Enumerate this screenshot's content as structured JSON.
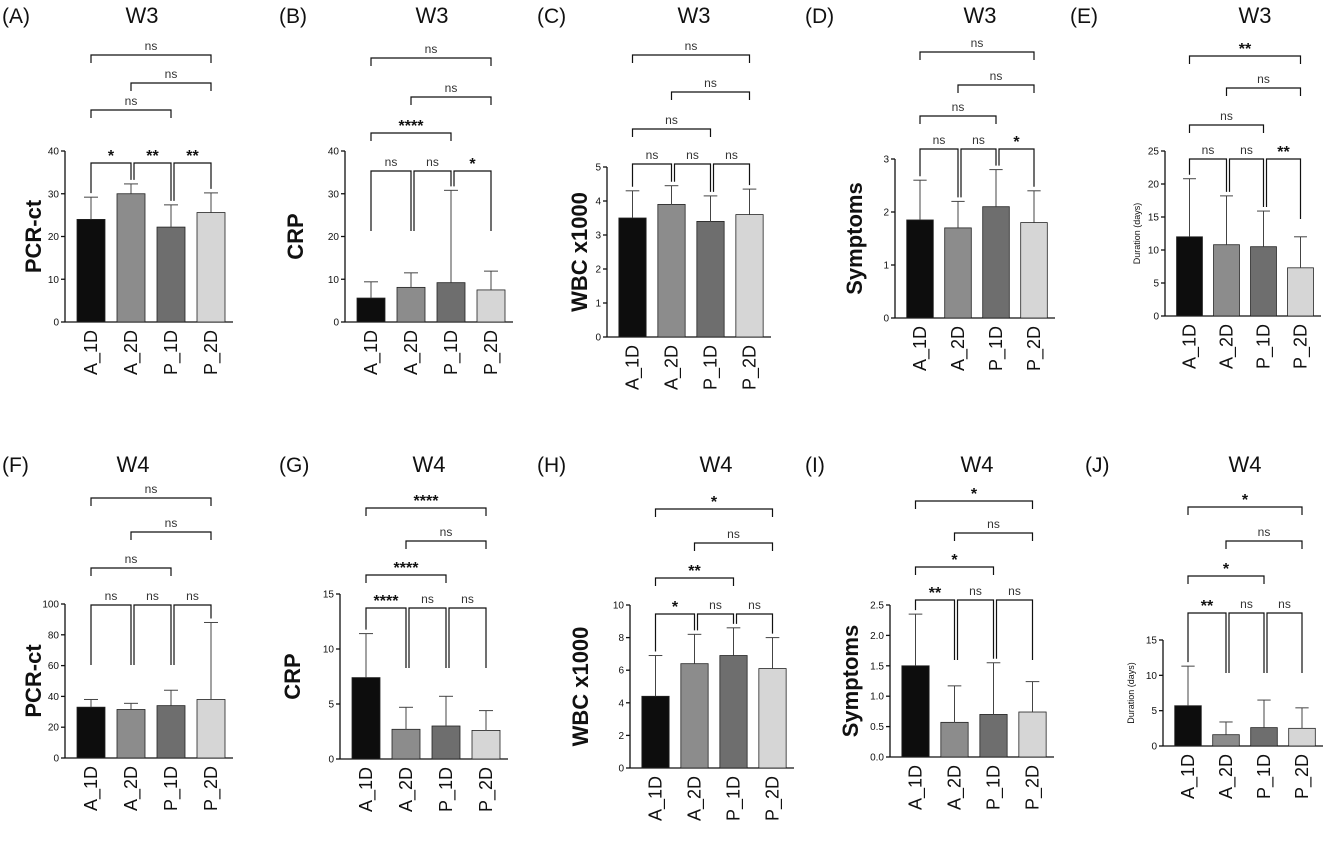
{
  "chart_data": [
    {
      "letter": "(A)",
      "title": "W3",
      "type": "bar",
      "ylabel": "PCR-ct",
      "categories": [
        "A_1D",
        "A_2D",
        "P_1D",
        "P_2D"
      ],
      "values": [
        24,
        30,
        22.2,
        25.6
      ],
      "errors": [
        5.2,
        2.3,
        5.2,
        4.6
      ],
      "ylim": [
        0,
        40
      ],
      "yticks": [
        "0",
        "10",
        "20",
        "30",
        "40"
      ],
      "comparisons": [
        {
          "from": "A_1D",
          "to": "A_2D",
          "label": "*"
        },
        {
          "from": "A_2D",
          "to": "P_1D",
          "label": "**"
        },
        {
          "from": "P_1D",
          "to": "P_2D",
          "label": "**"
        },
        {
          "from": "A_1D",
          "to": "P_1D",
          "label": "ns"
        },
        {
          "from": "A_2D",
          "to": "P_2D",
          "label": "ns"
        },
        {
          "from": "A_1D",
          "to": "P_2D",
          "label": "ns"
        }
      ]
    },
    {
      "letter": "(B)",
      "title": "W3",
      "type": "bar",
      "ylabel": "CRP",
      "categories": [
        "A_1D",
        "A_2D",
        "P_1D",
        "P_2D"
      ],
      "values": [
        5.6,
        8.1,
        9.2,
        7.5
      ],
      "errors": [
        3.8,
        3.4,
        21.6,
        4.4
      ],
      "ylim": [
        0,
        40
      ],
      "yticks": [
        "0",
        "10",
        "20",
        "30",
        "40"
      ],
      "comparisons": [
        {
          "from": "A_1D",
          "to": "A_2D",
          "label": "ns"
        },
        {
          "from": "A_2D",
          "to": "P_1D",
          "label": "ns"
        },
        {
          "from": "P_1D",
          "to": "P_2D",
          "label": "*"
        },
        {
          "from": "A_1D",
          "to": "P_1D",
          "label": "****"
        },
        {
          "from": "A_2D",
          "to": "P_2D",
          "label": "ns"
        },
        {
          "from": "A_1D",
          "to": "P_2D",
          "label": "ns"
        }
      ]
    },
    {
      "letter": "(C)",
      "title": "W3",
      "type": "bar",
      "ylabel": "WBC x1000",
      "categories": [
        "A_1D",
        "A_2D",
        "P_1D",
        "P_2D"
      ],
      "values": [
        3.5,
        3.9,
        3.4,
        3.6
      ],
      "errors": [
        0.8,
        0.55,
        0.75,
        0.75
      ],
      "ylim": [
        0,
        5
      ],
      "yticks": [
        "0",
        "1",
        "2",
        "3",
        "4",
        "5"
      ],
      "comparisons": [
        {
          "from": "A_1D",
          "to": "A_2D",
          "label": "ns"
        },
        {
          "from": "A_2D",
          "to": "P_1D",
          "label": "ns"
        },
        {
          "from": "P_1D",
          "to": "P_2D",
          "label": "ns"
        },
        {
          "from": "A_1D",
          "to": "P_1D",
          "label": "ns"
        },
        {
          "from": "A_2D",
          "to": "P_2D",
          "label": "ns"
        },
        {
          "from": "A_1D",
          "to": "P_2D",
          "label": "ns"
        }
      ]
    },
    {
      "letter": "(D)",
      "title": "W3",
      "type": "bar",
      "ylabel": "Symptoms",
      "categories": [
        "A_1D",
        "A_2D",
        "P_1D",
        "P_2D"
      ],
      "values": [
        1.85,
        1.7,
        2.1,
        1.8
      ],
      "errors": [
        0.75,
        0.5,
        0.7,
        0.6
      ],
      "ylim": [
        0,
        3
      ],
      "yticks": [
        "0",
        "1",
        "2",
        "3"
      ],
      "comparisons": [
        {
          "from": "A_1D",
          "to": "A_2D",
          "label": "ns"
        },
        {
          "from": "A_2D",
          "to": "P_1D",
          "label": "ns"
        },
        {
          "from": "P_1D",
          "to": "P_2D",
          "label": "*"
        },
        {
          "from": "A_1D",
          "to": "P_1D",
          "label": "ns"
        },
        {
          "from": "A_2D",
          "to": "P_2D",
          "label": "ns"
        },
        {
          "from": "A_1D",
          "to": "P_2D",
          "label": "ns"
        }
      ]
    },
    {
      "letter": "(E)",
      "title": "W3",
      "type": "bar",
      "ylabel": "Duration (days)",
      "categories": [
        "A_1D",
        "A_2D",
        "P_1D",
        "P_2D"
      ],
      "values": [
        12,
        10.8,
        10.5,
        7.3
      ],
      "errors": [
        8.8,
        7.4,
        5.4,
        4.7
      ],
      "ylim": [
        0,
        25
      ],
      "yticks": [
        "0",
        "5",
        "10",
        "15",
        "20",
        "25"
      ],
      "comparisons": [
        {
          "from": "A_1D",
          "to": "A_2D",
          "label": "ns"
        },
        {
          "from": "A_2D",
          "to": "P_1D",
          "label": "ns"
        },
        {
          "from": "P_1D",
          "to": "P_2D",
          "label": "**"
        },
        {
          "from": "A_1D",
          "to": "P_1D",
          "label": "ns"
        },
        {
          "from": "A_2D",
          "to": "P_2D",
          "label": "ns"
        },
        {
          "from": "A_1D",
          "to": "P_2D",
          "label": "**"
        }
      ]
    },
    {
      "letter": "(F)",
      "title": "W4",
      "type": "bar",
      "ylabel": "PCR-ct",
      "categories": [
        "A_1D",
        "A_2D",
        "P_1D",
        "P_2D"
      ],
      "values": [
        33,
        31.5,
        34,
        38
      ],
      "errors": [
        5,
        4,
        10,
        50
      ],
      "ylim": [
        0,
        100
      ],
      "yticks": [
        "0",
        "20",
        "40",
        "60",
        "80",
        "100"
      ],
      "comparisons": [
        {
          "from": "A_1D",
          "to": "A_2D",
          "label": "ns"
        },
        {
          "from": "A_2D",
          "to": "P_1D",
          "label": "ns"
        },
        {
          "from": "P_1D",
          "to": "P_2D",
          "label": "ns"
        },
        {
          "from": "A_1D",
          "to": "P_1D",
          "label": "ns"
        },
        {
          "from": "A_2D",
          "to": "P_2D",
          "label": "ns"
        },
        {
          "from": "A_1D",
          "to": "P_2D",
          "label": "ns"
        }
      ]
    },
    {
      "letter": "(G)",
      "title": "W4",
      "type": "bar",
      "ylabel": "CRP",
      "categories": [
        "A_1D",
        "A_2D",
        "P_1D",
        "P_2D"
      ],
      "values": [
        7.4,
        2.7,
        3,
        2.6
      ],
      "errors": [
        4,
        2,
        2.7,
        1.8
      ],
      "ylim": [
        0,
        15
      ],
      "yticks": [
        "0",
        "5",
        "10",
        "15"
      ],
      "comparisons": [
        {
          "from": "A_1D",
          "to": "A_2D",
          "label": "****"
        },
        {
          "from": "A_2D",
          "to": "P_1D",
          "label": "ns"
        },
        {
          "from": "P_1D",
          "to": "P_2D",
          "label": "ns"
        },
        {
          "from": "A_1D",
          "to": "P_1D",
          "label": "****"
        },
        {
          "from": "A_2D",
          "to": "P_2D",
          "label": "ns"
        },
        {
          "from": "A_1D",
          "to": "P_2D",
          "label": "****"
        }
      ]
    },
    {
      "letter": "(H)",
      "title": "W4",
      "type": "bar",
      "ylabel": "WBC x1000",
      "categories": [
        "A_1D",
        "A_2D",
        "P_1D",
        "P_2D"
      ],
      "values": [
        4.4,
        6.4,
        6.9,
        6.1
      ],
      "errors": [
        2.5,
        1.8,
        1.7,
        1.9
      ],
      "ylim": [
        0,
        10
      ],
      "yticks": [
        "0",
        "2",
        "4",
        "6",
        "8",
        "10"
      ],
      "comparisons": [
        {
          "from": "A_1D",
          "to": "A_2D",
          "label": "*"
        },
        {
          "from": "A_2D",
          "to": "P_1D",
          "label": "ns"
        },
        {
          "from": "P_1D",
          "to": "P_2D",
          "label": "ns"
        },
        {
          "from": "A_1D",
          "to": "P_1D",
          "label": "**"
        },
        {
          "from": "A_2D",
          "to": "P_2D",
          "label": "ns"
        },
        {
          "from": "A_1D",
          "to": "P_2D",
          "label": "*"
        }
      ]
    },
    {
      "letter": "(I)",
      "title": "W4",
      "type": "bar",
      "ylabel": "Symptoms",
      "categories": [
        "A_1D",
        "A_2D",
        "P_1D",
        "P_2D"
      ],
      "values": [
        1.5,
        0.57,
        0.7,
        0.74
      ],
      "errors": [
        0.85,
        0.6,
        0.85,
        0.5
      ],
      "ylim": [
        0,
        2.5
      ],
      "yticks": [
        "0.0",
        "0.5",
        "1.0",
        "1.5",
        "2.0",
        "2.5"
      ],
      "comparisons": [
        {
          "from": "A_1D",
          "to": "A_2D",
          "label": "**"
        },
        {
          "from": "A_2D",
          "to": "P_1D",
          "label": "ns"
        },
        {
          "from": "P_1D",
          "to": "P_2D",
          "label": "ns"
        },
        {
          "from": "A_1D",
          "to": "P_1D",
          "label": "*"
        },
        {
          "from": "A_2D",
          "to": "P_2D",
          "label": "ns"
        },
        {
          "from": "A_1D",
          "to": "P_2D",
          "label": "*"
        }
      ]
    },
    {
      "letter": "(J)",
      "title": "W4",
      "type": "bar",
      "ylabel": "Duration (days)",
      "categories": [
        "A_1D",
        "A_2D",
        "P_1D",
        "P_2D"
      ],
      "values": [
        5.7,
        1.6,
        2.6,
        2.5
      ],
      "errors": [
        5.6,
        1.8,
        3.9,
        2.9
      ],
      "ylim": [
        0,
        15
      ],
      "yticks": [
        "0",
        "5",
        "10",
        "15"
      ],
      "comparisons": [
        {
          "from": "A_1D",
          "to": "A_2D",
          "label": "**"
        },
        {
          "from": "A_2D",
          "to": "P_1D",
          "label": "ns"
        },
        {
          "from": "P_1D",
          "to": "P_2D",
          "label": "ns"
        },
        {
          "from": "A_1D",
          "to": "P_1D",
          "label": "*"
        },
        {
          "from": "A_2D",
          "to": "P_2D",
          "label": "ns"
        },
        {
          "from": "A_1D",
          "to": "P_2D",
          "label": "*"
        }
      ]
    }
  ],
  "colors": {
    "bars": [
      "#0d0d0d",
      "#8c8c8c",
      "#6e6e6e",
      "#d6d6d6"
    ],
    "bar_outline": "#222222",
    "errorbar": "#444444"
  }
}
